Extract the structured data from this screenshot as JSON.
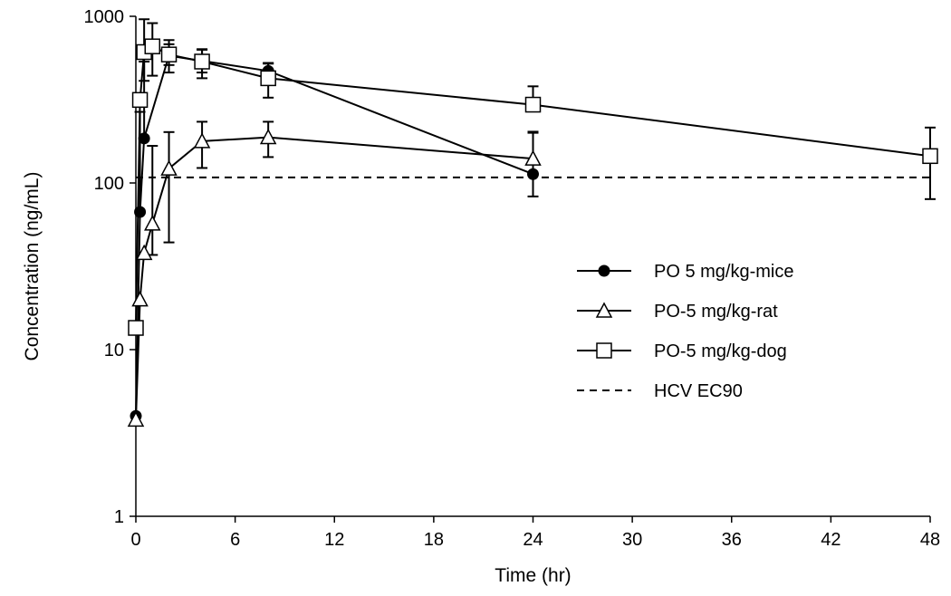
{
  "chart_data": {
    "type": "line",
    "xlabel": "Time (hr)",
    "ylabel": "Concentration (ng/mL)",
    "xlim": [
      0,
      48
    ],
    "ylim": [
      1,
      1000
    ],
    "y_scale": "log",
    "x_ticks": [
      0,
      6,
      12,
      18,
      24,
      30,
      36,
      42,
      48
    ],
    "x_tick_labels": [
      "0",
      "6",
      "12",
      "18",
      "24",
      "30",
      "36",
      "42",
      "48"
    ],
    "y_ticks": [
      1,
      10,
      100,
      1000
    ],
    "y_tick_labels": [
      "1",
      "10",
      "100",
      "1000"
    ],
    "grid": false,
    "legend_position": "right",
    "series": [
      {
        "name": "PO 5 mg/kg-mice",
        "marker": "filled-circle",
        "x": [
          0,
          0.25,
          0.5,
          2,
          4,
          8,
          24
        ],
        "y": [
          4,
          67,
          185,
          580,
          540,
          470,
          113
        ],
        "err_low": [
          null,
          null,
          null,
          70,
          80,
          60,
          30
        ],
        "err_high": [
          null,
          200,
          350,
          100,
          90,
          50,
          90
        ]
      },
      {
        "name": "PO-5 mg/kg-rat",
        "marker": "open-triangle",
        "x": [
          0,
          0.25,
          0.5,
          1,
          2,
          4,
          8,
          24
        ],
        "y": [
          3.8,
          20,
          38,
          57,
          122,
          178,
          188,
          140
        ],
        "err_low": [
          null,
          null,
          null,
          20,
          78,
          55,
          45,
          null
        ],
        "err_high": [
          null,
          null,
          null,
          110,
          80,
          55,
          45,
          60
        ]
      },
      {
        "name": "PO-5 mg/kg-dog",
        "marker": "open-square",
        "x": [
          0,
          0.25,
          0.5,
          1,
          2,
          4,
          8,
          24,
          48
        ],
        "y": [
          13.5,
          315,
          610,
          660,
          590,
          535,
          425,
          295,
          145
        ],
        "err_low": [
          null,
          null,
          200,
          220,
          130,
          110,
          100,
          null,
          65
        ],
        "err_high": [
          null,
          null,
          350,
          250,
          130,
          100,
          100,
          85,
          70
        ]
      }
    ],
    "reference_lines": [
      {
        "name": "HCV EC90",
        "y": 108,
        "style": "dashed"
      }
    ]
  }
}
